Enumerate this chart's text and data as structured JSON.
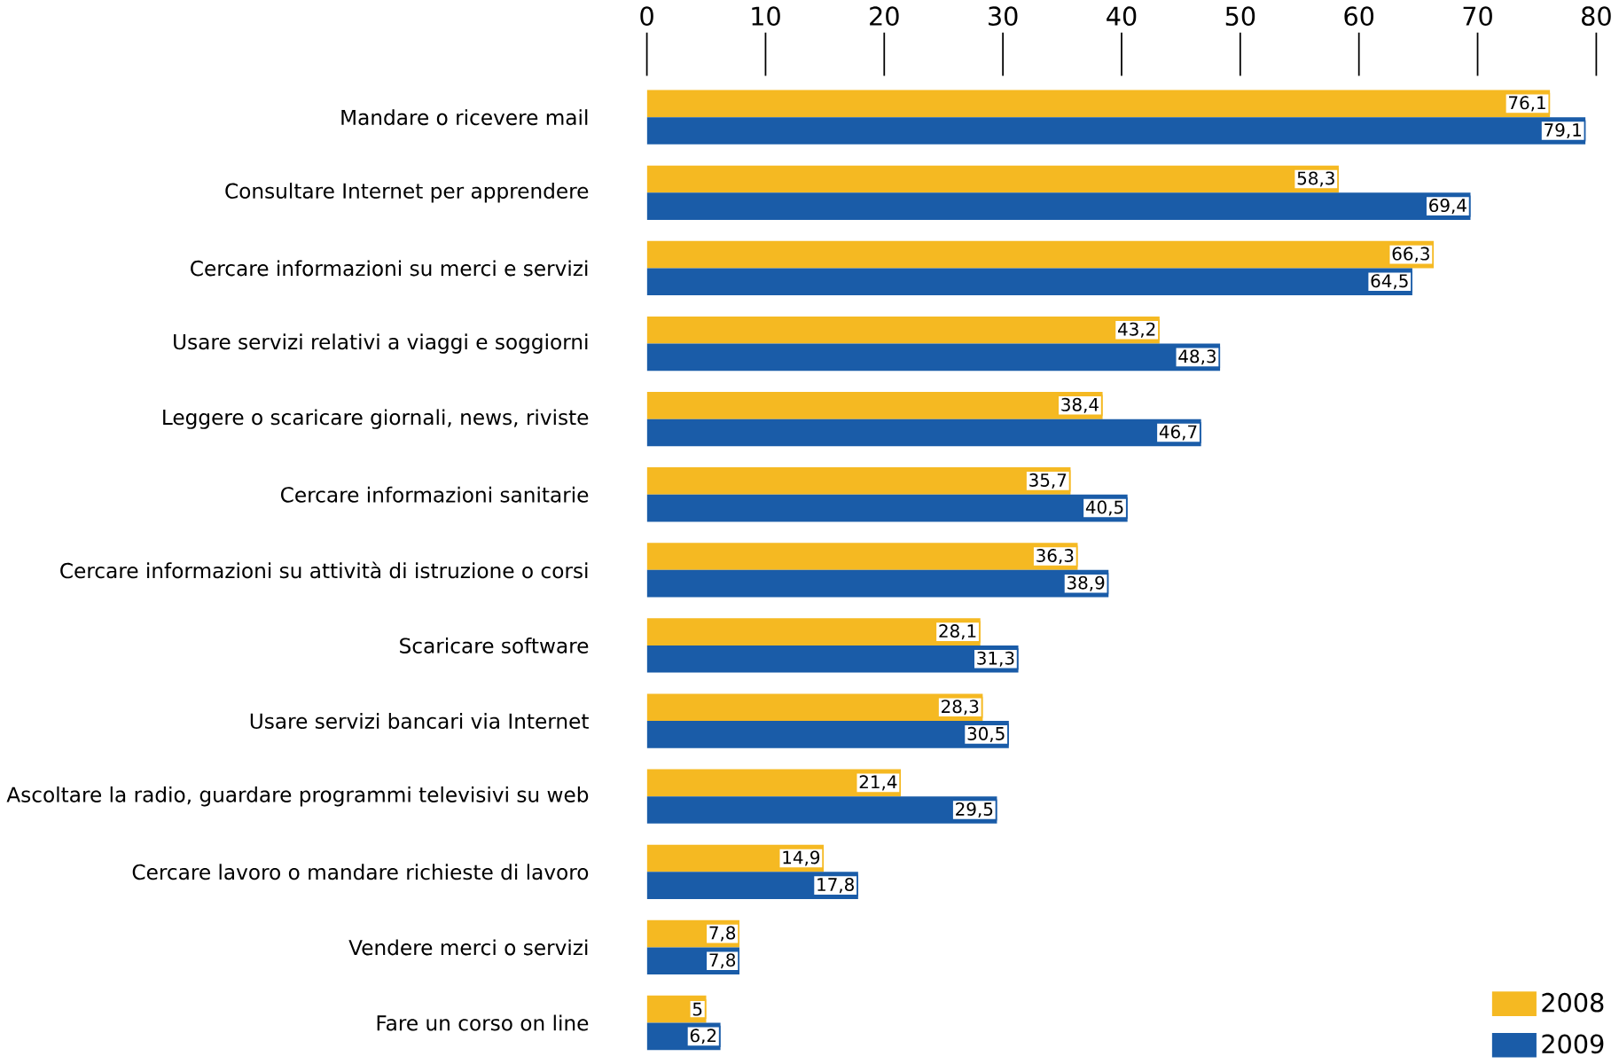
{
  "chart_data": {
    "type": "bar",
    "orientation": "horizontal",
    "categories": [
      "Mandare o ricevere mail",
      "Consultare Internet per apprendere",
      "Cercare informazioni su merci e servizi",
      "Usare servizi relativi a viaggi e soggiorni",
      "Leggere o scaricare giornali, news, riviste",
      "Cercare informazioni sanitarie",
      "Cercare informazioni su attività di istruzione o corsi",
      "Scaricare software",
      "Usare servizi bancari via Internet",
      "Ascoltare la radio, guardare programmi televisivi su web",
      "Cercare lavoro o mandare richieste di lavoro",
      "Vendere merci o servizi",
      "Fare un corso on line"
    ],
    "series": [
      {
        "name": "2008",
        "color": "#f5b922",
        "values": [
          76.1,
          58.3,
          66.3,
          43.2,
          38.4,
          35.7,
          36.3,
          28.1,
          28.3,
          21.4,
          14.9,
          7.8,
          5
        ],
        "value_labels": [
          "76,1",
          "58,3",
          "66,3",
          "43,2",
          "38,4",
          "35,7",
          "36,3",
          "28,1",
          "28,3",
          "21,4",
          "14,9",
          "7,8",
          "5"
        ]
      },
      {
        "name": "2009",
        "color": "#1a5ca8",
        "values": [
          79.1,
          69.4,
          64.5,
          48.3,
          46.7,
          40.5,
          38.9,
          31.3,
          30.5,
          29.5,
          17.8,
          7.8,
          6.2
        ],
        "value_labels": [
          "79,1",
          "69,4",
          "64,5",
          "48,3",
          "46,7",
          "40,5",
          "38,9",
          "31,3",
          "30,5",
          "29,5",
          "17,8",
          "7,8",
          "6,2"
        ]
      }
    ],
    "xlim": [
      0,
      80
    ],
    "xticks": [
      0,
      10,
      20,
      30,
      40,
      50,
      60,
      70,
      80
    ],
    "legend": "bottom right"
  }
}
